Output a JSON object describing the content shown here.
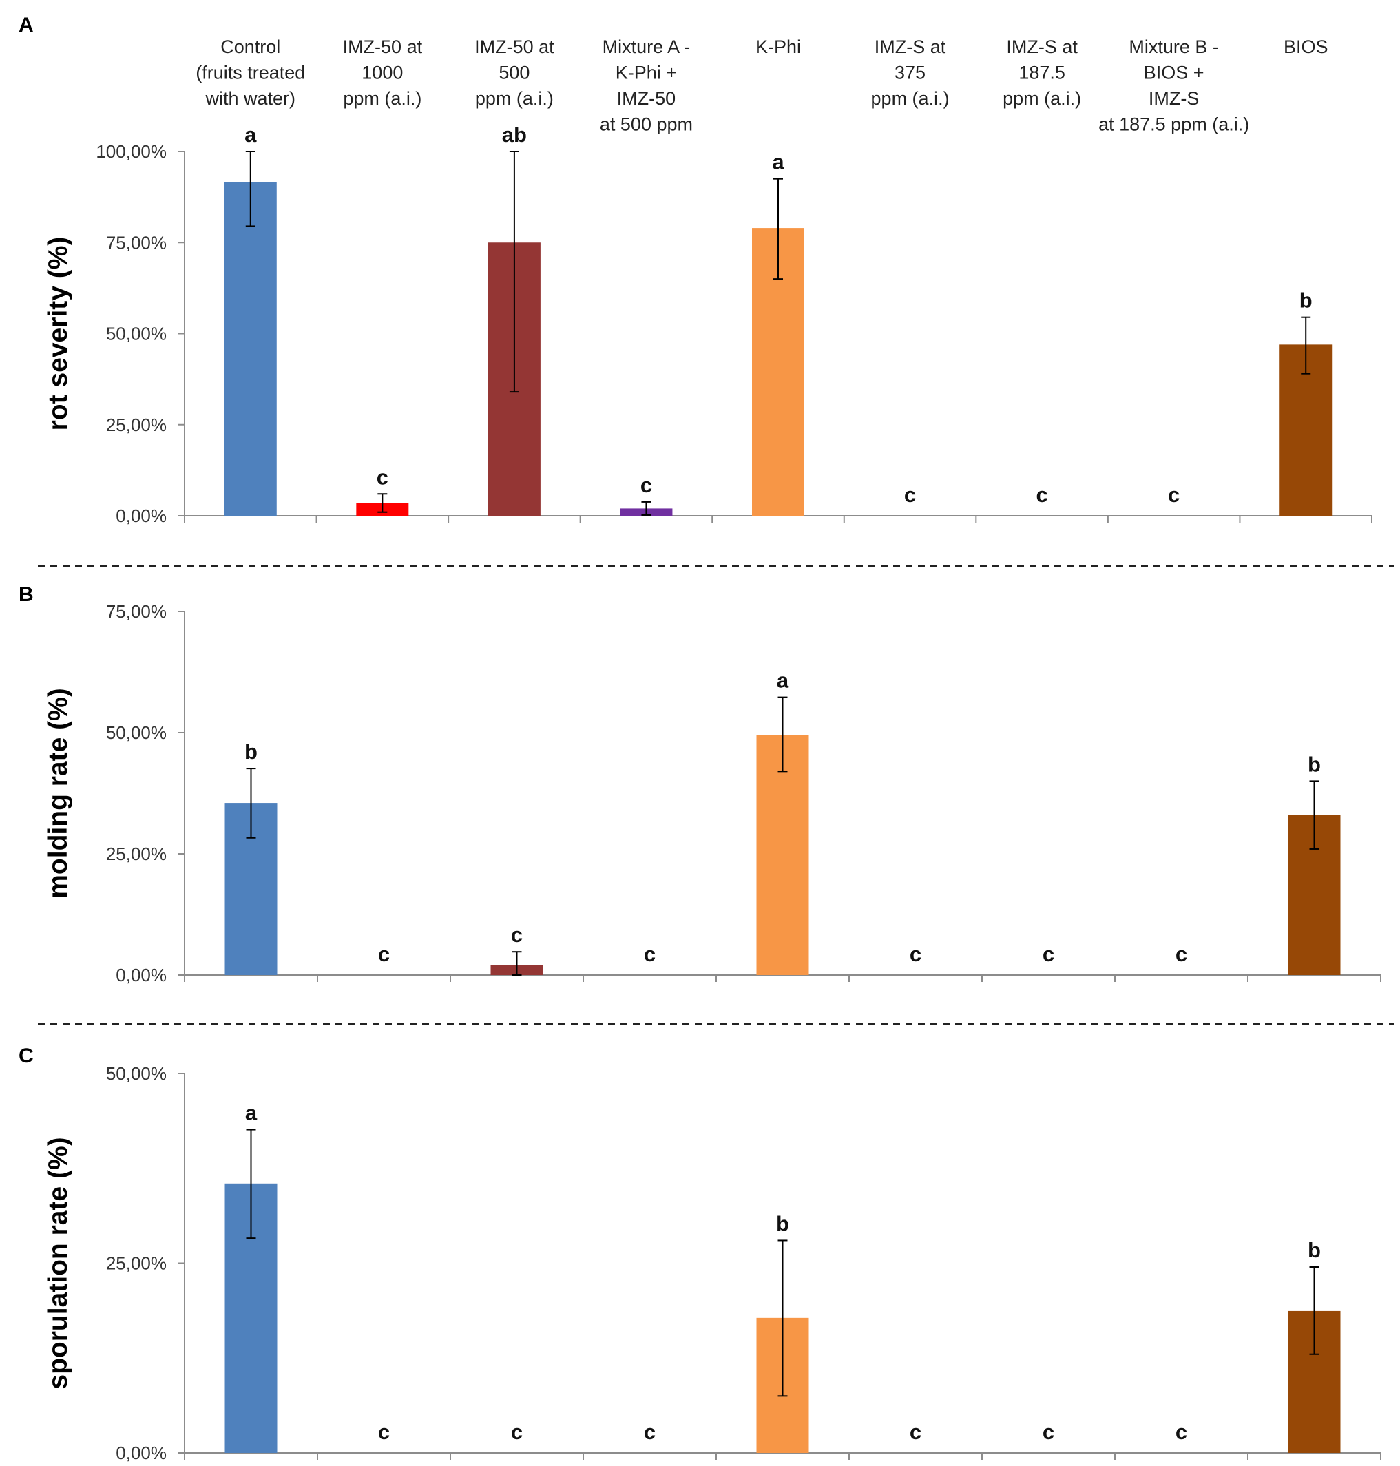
{
  "chart_data": {
    "type": "bar",
    "categories": [
      [
        "Control",
        "(fruits treated",
        "with water)"
      ],
      [
        "IMZ-50 at",
        "1000",
        "ppm (a.i.)"
      ],
      [
        "IMZ-50 at",
        "500",
        "ppm (a.i.)"
      ],
      [
        "Mixture A -",
        "K-Phi +",
        "IMZ-50",
        "at 500 ppm"
      ],
      [
        "K-Phi"
      ],
      [
        "IMZ-S at",
        "375",
        "ppm (a.i.)"
      ],
      [
        "IMZ-S at",
        "187.5",
        "ppm (a.i.)"
      ],
      [
        "Mixture B -",
        "BIOS +",
        "IMZ-S",
        "at 187.5 ppm (a.i.)"
      ],
      [
        "BIOS"
      ]
    ],
    "colors": [
      "#4F81BD",
      "#FF0000",
      "#943634",
      "#7030A0",
      "#F79646",
      "#4F81BD",
      "#4F81BD",
      "#4F81BD",
      "#974806"
    ],
    "panels": [
      {
        "label": "A",
        "ylabel": "rot severity (%)",
        "ylim": [
          0,
          100
        ],
        "ticks": [
          0,
          25,
          50,
          75,
          100
        ],
        "tick_labels": [
          "0,00%",
          "25,00%",
          "50,00%",
          "75,00%",
          "100,00%"
        ],
        "values": [
          91.5,
          3.5,
          75,
          2,
          79,
          0,
          0,
          0,
          47
        ],
        "err_low": [
          79.5,
          1,
          34,
          0.2,
          65,
          null,
          null,
          null,
          39
        ],
        "err_high": [
          100,
          6,
          100,
          3.8,
          92.5,
          null,
          null,
          null,
          54.5
        ],
        "sig": [
          "a",
          "c",
          "ab",
          "c",
          "a",
          "c",
          "c",
          "c",
          "b"
        ]
      },
      {
        "label": "B",
        "ylabel": "molding rate (%)",
        "ylim": [
          0,
          75
        ],
        "ticks": [
          0,
          25,
          50,
          75
        ],
        "tick_labels": [
          "0,00%",
          "25,00%",
          "50,00%",
          "75,00%"
        ],
        "values": [
          35.5,
          0,
          2,
          0,
          49.5,
          0,
          0,
          0,
          33
        ],
        "err_low": [
          28.3,
          null,
          0,
          null,
          42,
          null,
          null,
          null,
          26
        ],
        "err_high": [
          42.6,
          null,
          4.8,
          null,
          57.3,
          null,
          null,
          null,
          40
        ],
        "sig": [
          "b",
          "c",
          "c",
          "c",
          "a",
          "c",
          "c",
          "c",
          "b"
        ]
      },
      {
        "label": "C",
        "ylabel": "sporulation rate (%)",
        "ylim": [
          0,
          50
        ],
        "ticks": [
          0,
          25,
          50
        ],
        "tick_labels": [
          "0,00%",
          "25,00%",
          "50,00%"
        ],
        "values": [
          35.5,
          0,
          0,
          0,
          17.8,
          0,
          0,
          0,
          18.7
        ],
        "err_low": [
          28.3,
          null,
          null,
          null,
          7.5,
          null,
          null,
          null,
          13
        ],
        "err_high": [
          42.6,
          null,
          null,
          null,
          28,
          null,
          null,
          null,
          24.5
        ],
        "sig": [
          "a",
          "c",
          "c",
          "c",
          "b",
          "c",
          "c",
          "c",
          "b"
        ]
      }
    ]
  }
}
